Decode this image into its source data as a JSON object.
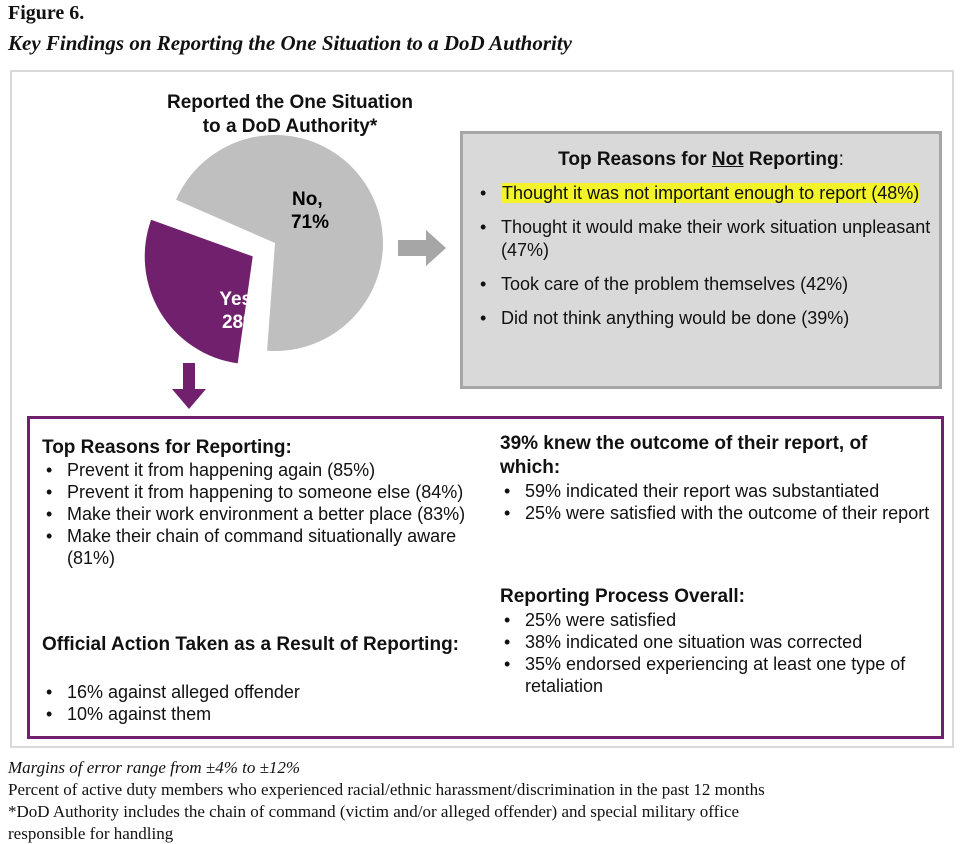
{
  "figure": {
    "label": "Figure 6.",
    "title": "Key Findings on Reporting the One Situation to a DoD Authority"
  },
  "colors": {
    "no_slice": "#bfbfbf",
    "yes_slice": "#70206c",
    "box_gray": "#d9d9d9",
    "highlight": "#f3f32a",
    "arrow_gray": "#a6a6a6"
  },
  "chart_data": {
    "type": "pie",
    "title": "Reported the One Situation to a DoD Authority*",
    "title_lines": [
      "Reported the One Situation",
      "to a DoD Authority*"
    ],
    "slices": [
      {
        "name": "No",
        "value": 71,
        "label_lines": [
          "No,",
          "71%"
        ]
      },
      {
        "name": "Yes",
        "value": 28,
        "label_lines": [
          "Yes,",
          "28%"
        ],
        "exploded": true
      }
    ]
  },
  "not_reporting": {
    "title_before": "Top Reasons for ",
    "title_underlined": "Not",
    "title_after": " Reporting",
    "title_colon": ":",
    "items": [
      "Thought it was not important enough to report (48%)",
      "Thought it would make their work situation unpleasant (47%)",
      "Took care of the problem themselves (42%)",
      "Did not think anything would be done (39%)"
    ]
  },
  "reporting": {
    "reasons_heading": "Top Reasons for Reporting:",
    "reasons": [
      "Prevent it from happening again (85%)",
      "Prevent it from happening to someone else (84%)",
      "Make their work environment a better place (83%)",
      "Make their chain of command situationally aware (81%)"
    ],
    "action_heading": "Official Action Taken as a Result of Reporting:",
    "actions": [
      "16% against alleged offender",
      "10% against them"
    ],
    "outcome_heading": "39% knew the outcome of their report, of which:",
    "outcomes": [
      "59% indicated their report was substantiated",
      "25% were satisfied with the outcome of their report"
    ],
    "process_heading": "Reporting Process Overall:",
    "process": [
      "25% were satisfied",
      "38% indicated one situation was corrected",
      "35% endorsed experiencing at least one type of retaliation"
    ]
  },
  "notes": {
    "margins": "Margins of error range from ±4% to ±12%",
    "percent": "Percent of active duty members who experienced racial/ethnic harassment/discrimination in the past 12 months",
    "dod": "*DoD Authority includes the chain of command (victim and/or alleged offender) and special military office",
    "cut": "responsible for handling"
  }
}
